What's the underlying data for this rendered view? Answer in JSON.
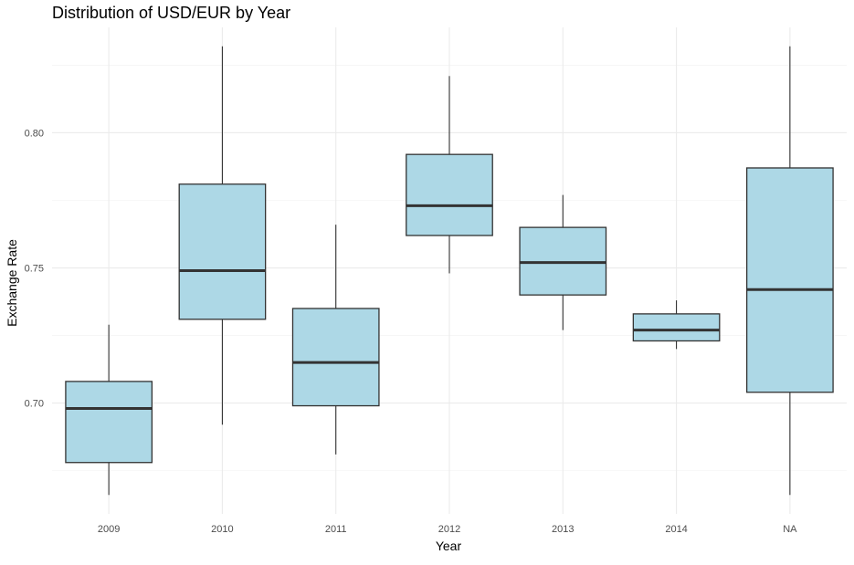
{
  "chart_data": {
    "type": "box",
    "title": "Distribution of USD/EUR by Year",
    "xlabel": "Year",
    "ylabel": "Exchange Rate",
    "categories": [
      "2009",
      "2010",
      "2011",
      "2012",
      "2013",
      "2014",
      "NA"
    ],
    "ylim": [
      0.659,
      0.839
    ],
    "yticks": [
      0.7,
      0.75,
      0.8
    ],
    "ytick_labels": [
      "0.70",
      "0.75",
      "0.80"
    ],
    "grid": true,
    "box_fill": "#add8e6",
    "box_stroke": "#333333",
    "boxes": [
      {
        "category": "2009",
        "whisker_low": 0.666,
        "q1": 0.678,
        "median": 0.698,
        "q3": 0.708,
        "whisker_high": 0.729
      },
      {
        "category": "2010",
        "whisker_low": 0.692,
        "q1": 0.731,
        "median": 0.749,
        "q3": 0.781,
        "whisker_high": 0.832
      },
      {
        "category": "2011",
        "whisker_low": 0.681,
        "q1": 0.699,
        "median": 0.715,
        "q3": 0.735,
        "whisker_high": 0.766
      },
      {
        "category": "2012",
        "whisker_low": 0.748,
        "q1": 0.762,
        "median": 0.773,
        "q3": 0.792,
        "whisker_high": 0.821
      },
      {
        "category": "2013",
        "whisker_low": 0.727,
        "q1": 0.74,
        "median": 0.752,
        "q3": 0.765,
        "whisker_high": 0.777
      },
      {
        "category": "2014",
        "whisker_low": 0.72,
        "q1": 0.723,
        "median": 0.727,
        "q3": 0.733,
        "whisker_high": 0.738
      },
      {
        "category": "NA",
        "whisker_low": 0.666,
        "q1": 0.704,
        "median": 0.742,
        "q3": 0.787,
        "whisker_high": 0.832
      }
    ]
  }
}
